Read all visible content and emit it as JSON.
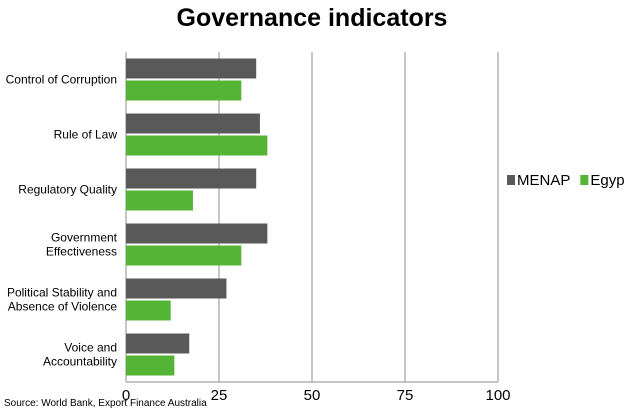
{
  "chart_data": {
    "type": "bar",
    "orientation": "horizontal",
    "title": "Governance indicators",
    "categories": [
      "Control of Corruption",
      "Rule of Law",
      "Regulatory Quality",
      "Government Effectiveness",
      "Political Stability and Absence of Violence",
      "Voice and Accountability"
    ],
    "category_lines": [
      [
        "Control of Corruption"
      ],
      [
        "Rule of Law"
      ],
      [
        "Regulatory Quality"
      ],
      [
        "Government",
        "Effectiveness"
      ],
      [
        "Political Stability and",
        "Absence of Violence"
      ],
      [
        "Voice and",
        "Accountability"
      ]
    ],
    "series": [
      {
        "name": "MENAP",
        "color": "#595959",
        "values": [
          35,
          36,
          35,
          38,
          27,
          17
        ]
      },
      {
        "name": "Egypt",
        "color": "#54b435",
        "values": [
          31,
          38,
          18,
          31,
          12,
          13
        ]
      }
    ],
    "xlim": [
      0,
      100
    ],
    "xticks": [
      0,
      25,
      50,
      75,
      100
    ],
    "grid": true,
    "legend_position": "right"
  },
  "source": "Source: World Bank, Export Finance Australia"
}
